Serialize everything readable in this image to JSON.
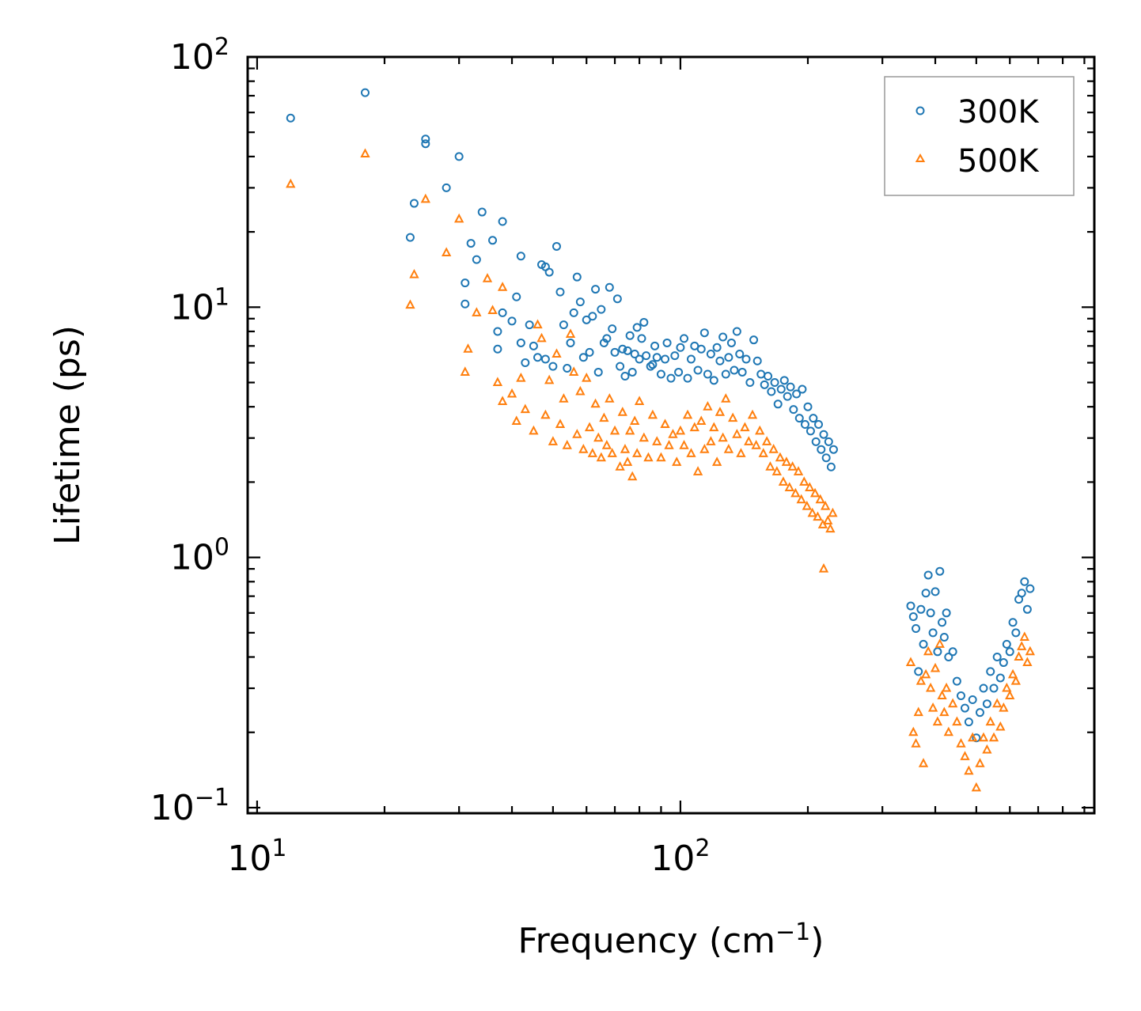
{
  "chart_data": {
    "type": "scatter",
    "title": "",
    "xlabel": "Frequency (cm",
    "xlabel_sup": "−1",
    "xlabel_end": ")",
    "ylabel": "Lifetime (ps)",
    "xscale": "log",
    "yscale": "log",
    "xlim": [
      9.5,
      950
    ],
    "ylim": [
      0.095,
      100
    ],
    "x_major_ticks": [
      {
        "value": 10,
        "base": "10",
        "exp": "1"
      },
      {
        "value": 100,
        "base": "10",
        "exp": "2"
      }
    ],
    "y_major_ticks": [
      {
        "value": 0.1,
        "base": "10",
        "exp": "−1"
      },
      {
        "value": 1,
        "base": "10",
        "exp": "0"
      },
      {
        "value": 10,
        "base": "10",
        "exp": "1"
      },
      {
        "value": 100,
        "base": "10",
        "exp": "2"
      }
    ],
    "legend_position": "top-right",
    "colors": {
      "300K": "#1f77b4",
      "500K": "#ff7f0e"
    },
    "series": [
      {
        "name": "300K",
        "marker": "circle",
        "points": [
          [
            12,
            57
          ],
          [
            18,
            72
          ],
          [
            23,
            19
          ],
          [
            23.5,
            26
          ],
          [
            25,
            47
          ],
          [
            25,
            45
          ],
          [
            28,
            30
          ],
          [
            30,
            40
          ],
          [
            31,
            10.3
          ],
          [
            31,
            12.5
          ],
          [
            32,
            18
          ],
          [
            33,
            15.5
          ],
          [
            34,
            24
          ],
          [
            36,
            18.5
          ],
          [
            37,
            6.8
          ],
          [
            37,
            8
          ],
          [
            38,
            22
          ],
          [
            38,
            9.5
          ],
          [
            40,
            8.8
          ],
          [
            41,
            11
          ],
          [
            42,
            16
          ],
          [
            42,
            7.2
          ],
          [
            43,
            6
          ],
          [
            44,
            8.5
          ],
          [
            45,
            7
          ],
          [
            46,
            6.3
          ],
          [
            47,
            14.8
          ],
          [
            48,
            14.5
          ],
          [
            48,
            6.2
          ],
          [
            49,
            13.8
          ],
          [
            50,
            5.8
          ],
          [
            51,
            17.5
          ],
          [
            52,
            11.5
          ],
          [
            53,
            8.5
          ],
          [
            54,
            5.7
          ],
          [
            55,
            7.2
          ],
          [
            56,
            9.5
          ],
          [
            57,
            13.2
          ],
          [
            58,
            10.5
          ],
          [
            59,
            6.3
          ],
          [
            60,
            8.9
          ],
          [
            61,
            6.6
          ],
          [
            62,
            9.2
          ],
          [
            63,
            11.8
          ],
          [
            64,
            5.5
          ],
          [
            65,
            9.8
          ],
          [
            66,
            7.2
          ],
          [
            67,
            7.5
          ],
          [
            68,
            12
          ],
          [
            69,
            8.2
          ],
          [
            70,
            6.6
          ],
          [
            71,
            10.8
          ],
          [
            72,
            5.8
          ],
          [
            73,
            6.8
          ],
          [
            74,
            5.3
          ],
          [
            75,
            6.7
          ],
          [
            76,
            7.7
          ],
          [
            77,
            5.5
          ],
          [
            78,
            6.5
          ],
          [
            79,
            8.3
          ],
          [
            80,
            6.2
          ],
          [
            81,
            7.5
          ],
          [
            82,
            8.7
          ],
          [
            83,
            6.4
          ],
          [
            85,
            5.8
          ],
          [
            86,
            5.9
          ],
          [
            87,
            7.0
          ],
          [
            88,
            6.3
          ],
          [
            90,
            5.4
          ],
          [
            92,
            6.2
          ],
          [
            93,
            7.2
          ],
          [
            95,
            5.2
          ],
          [
            97,
            6.4
          ],
          [
            99,
            5.5
          ],
          [
            100,
            6.9
          ],
          [
            102,
            7.5
          ],
          [
            104,
            5.2
          ],
          [
            106,
            6.2
          ],
          [
            108,
            7.0
          ],
          [
            110,
            5.6
          ],
          [
            112,
            6.8
          ],
          [
            114,
            7.9
          ],
          [
            116,
            5.4
          ],
          [
            118,
            6.5
          ],
          [
            120,
            5.1
          ],
          [
            122,
            6.9
          ],
          [
            124,
            6.1
          ],
          [
            126,
            7.6
          ],
          [
            128,
            5.4
          ],
          [
            130,
            6.3
          ],
          [
            132,
            7.2
          ],
          [
            134,
            5.6
          ],
          [
            136,
            8.0
          ],
          [
            138,
            6.5
          ],
          [
            140,
            5.5
          ],
          [
            143,
            6.2
          ],
          [
            146,
            5.0
          ],
          [
            149,
            7.4
          ],
          [
            152,
            6.1
          ],
          [
            155,
            5.4
          ],
          [
            158,
            4.9
          ],
          [
            161,
            5.3
          ],
          [
            164,
            4.6
          ],
          [
            167,
            5.0
          ],
          [
            170,
            4.1
          ],
          [
            173,
            4.7
          ],
          [
            176,
            5.1
          ],
          [
            179,
            4.4
          ],
          [
            182,
            4.8
          ],
          [
            185,
            3.9
          ],
          [
            188,
            4.5
          ],
          [
            191,
            3.6
          ],
          [
            194,
            4.7
          ],
          [
            197,
            3.4
          ],
          [
            200,
            4.0
          ],
          [
            203,
            3.2
          ],
          [
            206,
            3.6
          ],
          [
            209,
            2.9
          ],
          [
            212,
            3.4
          ],
          [
            215,
            2.7
          ],
          [
            218,
            3.1
          ],
          [
            221,
            2.5
          ],
          [
            224,
            2.9
          ],
          [
            227,
            2.3
          ],
          [
            230,
            2.7
          ],
          [
            350,
            0.64
          ],
          [
            355,
            0.58
          ],
          [
            360,
            0.52
          ],
          [
            365,
            0.35
          ],
          [
            370,
            0.62
          ],
          [
            375,
            0.45
          ],
          [
            380,
            0.72
          ],
          [
            385,
            0.85
          ],
          [
            390,
            0.6
          ],
          [
            395,
            0.5
          ],
          [
            400,
            0.73
          ],
          [
            405,
            0.42
          ],
          [
            410,
            0.88
          ],
          [
            415,
            0.55
          ],
          [
            420,
            0.48
          ],
          [
            425,
            0.6
          ],
          [
            430,
            0.4
          ],
          [
            440,
            0.42
          ],
          [
            450,
            0.32
          ],
          [
            460,
            0.28
          ],
          [
            470,
            0.25
          ],
          [
            480,
            0.22
          ],
          [
            490,
            0.27
          ],
          [
            500,
            0.19
          ],
          [
            510,
            0.24
          ],
          [
            520,
            0.3
          ],
          [
            530,
            0.26
          ],
          [
            540,
            0.35
          ],
          [
            550,
            0.3
          ],
          [
            560,
            0.4
          ],
          [
            570,
            0.33
          ],
          [
            580,
            0.38
          ],
          [
            590,
            0.45
          ],
          [
            600,
            0.42
          ],
          [
            610,
            0.55
          ],
          [
            620,
            0.5
          ],
          [
            630,
            0.68
          ],
          [
            640,
            0.72
          ],
          [
            650,
            0.8
          ],
          [
            660,
            0.62
          ],
          [
            670,
            0.75
          ]
        ]
      },
      {
        "name": "500K",
        "marker": "triangle",
        "points": [
          [
            12,
            31
          ],
          [
            18,
            41
          ],
          [
            23,
            10.2
          ],
          [
            23.5,
            13.5
          ],
          [
            25,
            27
          ],
          [
            28,
            16.5
          ],
          [
            30,
            22.5
          ],
          [
            31,
            5.5
          ],
          [
            31.5,
            6.8
          ],
          [
            33,
            9.5
          ],
          [
            35,
            13
          ],
          [
            36,
            9.7
          ],
          [
            37,
            5
          ],
          [
            38,
            4.2
          ],
          [
            38,
            12
          ],
          [
            40,
            4.5
          ],
          [
            41,
            3.5
          ],
          [
            42,
            5.2
          ],
          [
            43,
            3.9
          ],
          [
            45,
            3.2
          ],
          [
            46,
            8.5
          ],
          [
            47,
            7.5
          ],
          [
            48,
            3.7
          ],
          [
            49,
            5.1
          ],
          [
            50,
            2.9
          ],
          [
            51,
            6.5
          ],
          [
            52,
            3.4
          ],
          [
            53,
            4.3
          ],
          [
            54,
            2.8
          ],
          [
            55,
            7.8
          ],
          [
            56,
            5.5
          ],
          [
            57,
            3.1
          ],
          [
            58,
            4.6
          ],
          [
            59,
            2.7
          ],
          [
            60,
            5.2
          ],
          [
            61,
            3.3
          ],
          [
            62,
            2.6
          ],
          [
            63,
            4.1
          ],
          [
            64,
            3.0
          ],
          [
            65,
            2.5
          ],
          [
            66,
            3.6
          ],
          [
            67,
            2.8
          ],
          [
            68,
            4.3
          ],
          [
            69,
            2.6
          ],
          [
            70,
            3.2
          ],
          [
            72,
            2.3
          ],
          [
            73,
            3.8
          ],
          [
            74,
            2.7
          ],
          [
            75,
            2.4
          ],
          [
            76,
            3.2
          ],
          [
            77,
            2.1
          ],
          [
            78,
            3.5
          ],
          [
            79,
            2.6
          ],
          [
            80,
            4.2
          ],
          [
            82,
            3.0
          ],
          [
            84,
            2.5
          ],
          [
            86,
            3.7
          ],
          [
            88,
            2.9
          ],
          [
            90,
            2.5
          ],
          [
            92,
            3.4
          ],
          [
            94,
            2.8
          ],
          [
            96,
            3.1
          ],
          [
            98,
            2.4
          ],
          [
            100,
            3.2
          ],
          [
            102,
            2.8
          ],
          [
            104,
            3.7
          ],
          [
            106,
            2.6
          ],
          [
            108,
            3.3
          ],
          [
            110,
            2.2
          ],
          [
            112,
            3.5
          ],
          [
            114,
            2.7
          ],
          [
            116,
            4.0
          ],
          [
            118,
            2.9
          ],
          [
            120,
            3.3
          ],
          [
            122,
            2.4
          ],
          [
            124,
            3.8
          ],
          [
            126,
            3.0
          ],
          [
            128,
            4.3
          ],
          [
            130,
            2.7
          ],
          [
            133,
            3.6
          ],
          [
            136,
            3.1
          ],
          [
            139,
            2.6
          ],
          [
            142,
            3.3
          ],
          [
            145,
            2.9
          ],
          [
            148,
            3.7
          ],
          [
            151,
            2.8
          ],
          [
            154,
            3.2
          ],
          [
            157,
            2.6
          ],
          [
            160,
            2.9
          ],
          [
            163,
            2.3
          ],
          [
            166,
            2.7
          ],
          [
            169,
            2.2
          ],
          [
            172,
            2.5
          ],
          [
            175,
            2.0
          ],
          [
            178,
            2.4
          ],
          [
            181,
            1.9
          ],
          [
            184,
            2.3
          ],
          [
            187,
            1.8
          ],
          [
            190,
            2.2
          ],
          [
            193,
            1.7
          ],
          [
            196,
            2.0
          ],
          [
            199,
            1.6
          ],
          [
            202,
            1.9
          ],
          [
            205,
            1.5
          ],
          [
            208,
            1.8
          ],
          [
            211,
            1.45
          ],
          [
            214,
            1.7
          ],
          [
            217,
            1.35
          ],
          [
            220,
            1.6
          ],
          [
            223,
            1.4
          ],
          [
            226,
            1.3
          ],
          [
            229,
            1.5
          ],
          [
            218,
            0.9
          ],
          [
            350,
            0.38
          ],
          [
            355,
            0.2
          ],
          [
            360,
            0.18
          ],
          [
            365,
            0.24
          ],
          [
            370,
            0.32
          ],
          [
            375,
            0.15
          ],
          [
            380,
            0.34
          ],
          [
            385,
            0.42
          ],
          [
            390,
            0.3
          ],
          [
            395,
            0.25
          ],
          [
            400,
            0.36
          ],
          [
            405,
            0.22
          ],
          [
            410,
            0.45
          ],
          [
            415,
            0.28
          ],
          [
            420,
            0.24
          ],
          [
            425,
            0.3
          ],
          [
            430,
            0.2
          ],
          [
            440,
            0.26
          ],
          [
            450,
            0.22
          ],
          [
            460,
            0.18
          ],
          [
            470,
            0.16
          ],
          [
            480,
            0.14
          ],
          [
            490,
            0.19
          ],
          [
            500,
            0.12
          ],
          [
            510,
            0.15
          ],
          [
            520,
            0.19
          ],
          [
            530,
            0.17
          ],
          [
            540,
            0.22
          ],
          [
            550,
            0.19
          ],
          [
            560,
            0.26
          ],
          [
            570,
            0.21
          ],
          [
            580,
            0.25
          ],
          [
            590,
            0.3
          ],
          [
            600,
            0.28
          ],
          [
            610,
            0.34
          ],
          [
            620,
            0.32
          ],
          [
            630,
            0.4
          ],
          [
            640,
            0.44
          ],
          [
            650,
            0.48
          ],
          [
            660,
            0.38
          ],
          [
            670,
            0.42
          ]
        ]
      }
    ]
  }
}
